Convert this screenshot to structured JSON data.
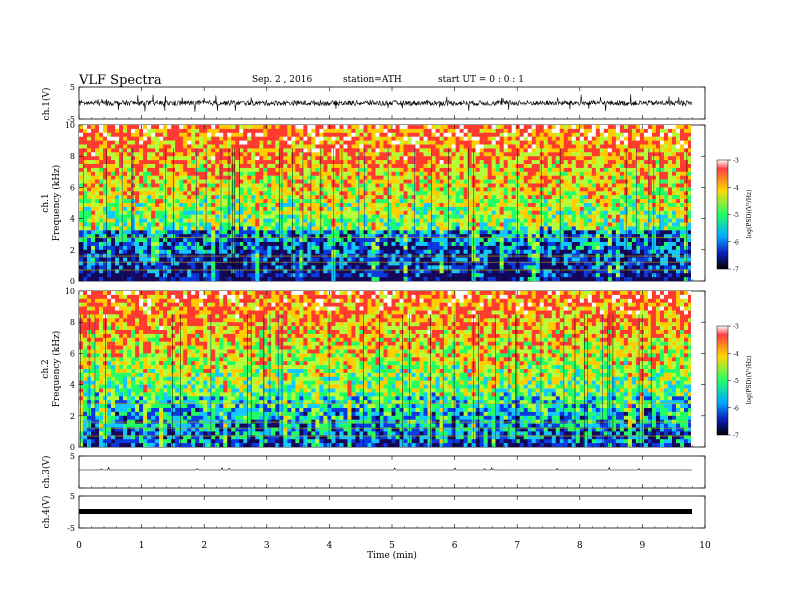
{
  "header": {
    "title": "VLF  Spectra",
    "date": "Sep. 2  , 2016",
    "station": "station=ATH",
    "start": "start  UT  =   0  : 0   : 1"
  },
  "colorbar": {
    "label": "log(PSD)(V²/Hz)",
    "ticks": [
      "-3",
      "-4",
      "-5",
      "-6",
      "-7"
    ],
    "colors": [
      "#ff3333",
      "#ffd700",
      "#22ff66",
      "#00aaff",
      "#0a1fbf",
      "#2a0a5a"
    ]
  },
  "chart_data": [
    {
      "type": "line",
      "title": "",
      "ylabel": "ch.1(V)",
      "xlim": [
        0,
        10
      ],
      "ylim": [
        -5,
        5
      ],
      "yticks": [
        "5",
        "-5"
      ],
      "series": [
        {
          "description_free": true,
          "values_summary": [
            -0.3,
            0.3
          ]
        }
      ]
    },
    {
      "type": "heatmap",
      "ylabel": "Frequency (kHz)",
      "panel_label": "ch.1",
      "xlim": [
        0,
        10
      ],
      "ylim": [
        0,
        10
      ],
      "yticks": [
        "0",
        "2",
        "4",
        "6",
        "8",
        "10"
      ],
      "zlim": [
        -7,
        -3
      ],
      "z_unit": "log(PSD)(V²/Hz)"
    },
    {
      "type": "heatmap",
      "ylabel": "Frequency (kHz)",
      "panel_label": "ch.2",
      "xlim": [
        0,
        10
      ],
      "ylim": [
        0,
        10
      ],
      "yticks": [
        "0",
        "2",
        "4",
        "6",
        "8",
        "10"
      ],
      "zlim": [
        -7,
        -3
      ],
      "z_unit": "log(PSD)(V²/Hz)"
    },
    {
      "type": "line",
      "ylabel": "ch.3(V)",
      "xlim": [
        0,
        10
      ],
      "ylim": [
        -5,
        5
      ],
      "yticks": [
        "5"
      ],
      "series": [
        {
          "values_summary": [
            -4.6,
            -4.6
          ]
        }
      ]
    },
    {
      "type": "line",
      "ylabel": "ch.4(V)",
      "xlim": [
        0,
        10
      ],
      "ylim": [
        -5,
        5
      ],
      "yticks": [
        "5",
        "-5"
      ],
      "series": [
        {
          "values_summary": [
            0,
            0
          ]
        }
      ]
    }
  ],
  "xaxis": {
    "label": "Time  (min)",
    "ticks": [
      "0",
      "1",
      "2",
      "3",
      "4",
      "5",
      "6",
      "7",
      "8",
      "9",
      "10"
    ]
  }
}
